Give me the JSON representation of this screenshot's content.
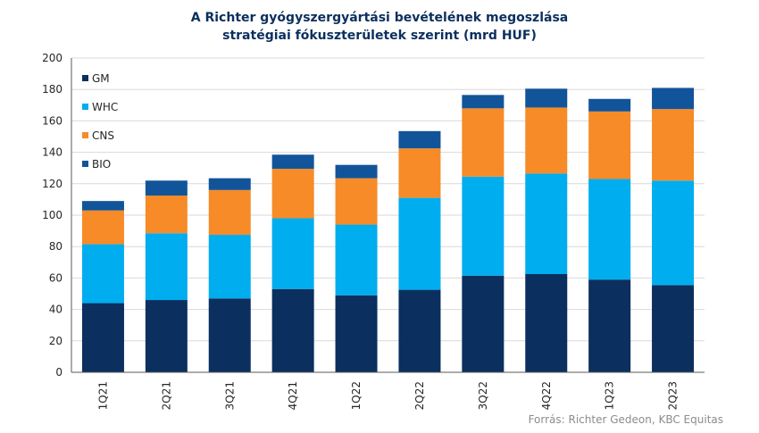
{
  "chart_data": {
    "type": "bar",
    "stacked": true,
    "title_line1": "A Richter gyógyszergyártási bevételének megoszlása",
    "title_line2": "stratégiai fókuszterületek szerint (mrd HUF)",
    "categories": [
      "1Q21",
      "2Q21",
      "3Q21",
      "4Q21",
      "1Q22",
      "2Q22",
      "3Q22",
      "4Q22",
      "1Q23",
      "2Q23"
    ],
    "series": [
      {
        "name": "GM",
        "color": "#0b2f5e",
        "values": [
          44,
          46,
          47,
          53,
          49,
          52.5,
          61.5,
          62.5,
          59,
          55.5
        ]
      },
      {
        "name": "WHC",
        "color": "#00adef",
        "values": [
          37.5,
          42.5,
          40.5,
          45,
          45,
          58.5,
          63,
          64,
          64,
          66.5
        ]
      },
      {
        "name": "CNS",
        "color": "#f68b28",
        "values": [
          21.5,
          24,
          28.5,
          31.5,
          29.5,
          31.5,
          43.5,
          42,
          43,
          45.5
        ]
      },
      {
        "name": "BIO",
        "color": "#12549a",
        "values": [
          6,
          9.5,
          7.5,
          9,
          8.5,
          11,
          8.5,
          12,
          8,
          13.5
        ]
      }
    ],
    "ylim": [
      0,
      200
    ],
    "yticks": [
      0,
      20,
      40,
      60,
      80,
      100,
      120,
      140,
      160,
      180,
      200
    ],
    "grid": true,
    "legend_position": "top-left, inside plot",
    "legend_order": [
      "GM",
      "WHC",
      "CNS",
      "BIO"
    ],
    "source": "Forrás: Richter Gedeon, KBC Equitas"
  }
}
